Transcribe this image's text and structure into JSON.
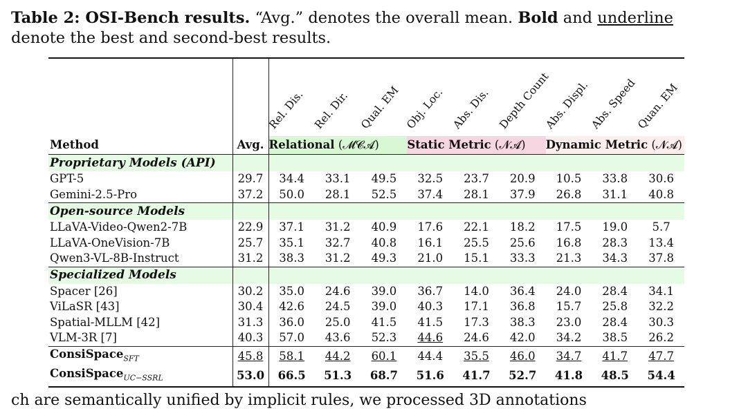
{
  "caption": {
    "label": "Table 2: OSI-Bench results.",
    "text1": " “Avg.” denotes the overall mean. ",
    "bold_word": "Bold",
    "and": " and ",
    "underline_word": "underline",
    "line2": "denote the best and second-best results."
  },
  "header": {
    "method": "Method",
    "avg": "Avg.",
    "columns": [
      "Rel. Dis.",
      "Rel. Dir.",
      "Qual. EM",
      "Obj. Loc.",
      "Abs. Dis.",
      "Depth Count",
      "Abs. Displ.",
      "Abs. Speed",
      "Quan. EM"
    ],
    "groups": {
      "relational": {
        "name": "Relational",
        "tag": "(𝓜𝓒𝓐)"
      },
      "static": {
        "name": "Static Metric",
        "tag": "(𝓝𝓐)"
      },
      "dynamic": {
        "name": "Dynamic Metric",
        "tag": "(𝓝𝓐)"
      }
    }
  },
  "sections": [
    {
      "title": "Proprietary Models (API)",
      "rows": [
        {
          "method": "GPT-5",
          "avg": "29.7",
          "values": [
            "34.4",
            "33.1",
            "49.5",
            "32.5",
            "23.7",
            "20.9",
            "10.5",
            "33.8",
            "30.6"
          ]
        },
        {
          "method": "Gemini-2.5-Pro",
          "avg": "37.2",
          "values": [
            "50.0",
            "28.1",
            "52.5",
            "37.4",
            "28.1",
            "37.9",
            "26.8",
            "31.1",
            "40.8"
          ]
        }
      ]
    },
    {
      "title": "Open-source Models",
      "rows": [
        {
          "method": "LLaVA-Video-Qwen2-7B",
          "avg": "22.9",
          "values": [
            "37.1",
            "31.2",
            "40.9",
            "17.6",
            "22.1",
            "18.2",
            "17.5",
            "19.0",
            "5.7"
          ]
        },
        {
          "method": "LLaVA-OneVision-7B",
          "avg": "25.7",
          "values": [
            "35.1",
            "32.7",
            "40.8",
            "16.1",
            "25.5",
            "25.6",
            "16.8",
            "28.3",
            "13.4"
          ]
        },
        {
          "method": "Qwen3-VL-8B-Instruct",
          "avg": "31.2",
          "values": [
            "38.3",
            "31.2",
            "49.3",
            "21.0",
            "15.1",
            "33.3",
            "21.3",
            "34.3",
            "37.8"
          ]
        }
      ]
    },
    {
      "title": "Specialized Models",
      "rows": [
        {
          "method": "Spacer [26]",
          "avg": "30.2",
          "values": [
            "35.0",
            "24.6",
            "39.0",
            "36.7",
            "14.0",
            "36.4",
            "24.0",
            "28.4",
            "34.1"
          ]
        },
        {
          "method": "ViLaSR [43]",
          "avg": "30.4",
          "values": [
            "42.6",
            "24.5",
            "39.0",
            "40.3",
            "17.1",
            "36.8",
            "15.7",
            "25.8",
            "32.2"
          ]
        },
        {
          "method": "Spatial-MLLM [42]",
          "avg": "31.3",
          "values": [
            "36.0",
            "25.0",
            "41.5",
            "41.5",
            "17.3",
            "38.3",
            "23.0",
            "28.4",
            "30.3"
          ]
        },
        {
          "method": "VLM-3R [7]",
          "avg": "40.3",
          "values": [
            "57.0",
            "43.6",
            "52.3",
            "44.6",
            "24.6",
            "42.0",
            "34.2",
            "38.5",
            "26.2"
          ]
        }
      ]
    }
  ],
  "ours": [
    {
      "method": "ConsiSpace",
      "sub": "SFT",
      "avg": "45.8",
      "values": [
        "58.1",
        "44.2",
        "60.1",
        "44.4",
        "35.5",
        "46.0",
        "34.7",
        "41.7",
        "47.7"
      ]
    },
    {
      "method": "ConsiSpace",
      "sub": "UC−SSRL",
      "avg": "53.0",
      "values": [
        "66.5",
        "51.3",
        "68.7",
        "51.6",
        "41.7",
        "52.7",
        "41.8",
        "48.5",
        "54.4"
      ]
    }
  ],
  "bottom_text": "ch are semantically unified by implicit rules, we processed 3D annotations"
}
